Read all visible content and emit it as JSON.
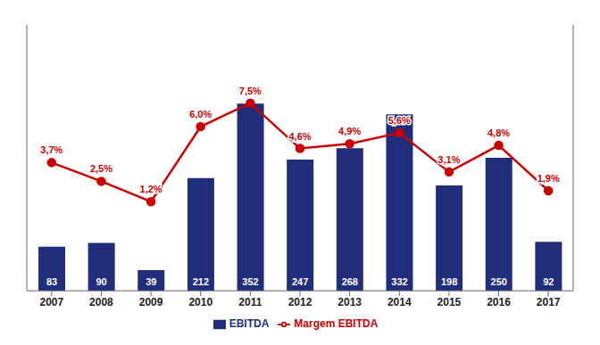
{
  "chart_data": {
    "type": "bar",
    "categories": [
      "2007",
      "2008",
      "2009",
      "2010",
      "2011",
      "2012",
      "2013",
      "2014",
      "2015",
      "2016",
      "2017"
    ],
    "ylim": [
      0,
      500
    ],
    "y2lim": [
      -4.5,
      12.5
    ],
    "tick_labels": "x",
    "grid": false,
    "legend": "bottom",
    "series": [
      {
        "name": "EBITDA",
        "type": "bar",
        "color": "#1f2d7b",
        "data_labels": true,
        "values": [
          83,
          90,
          39,
          212,
          352,
          247,
          268,
          332,
          198,
          250,
          92
        ]
      },
      {
        "name": "Margem EBITDA",
        "type": "line",
        "axis": "y2",
        "color": "#cc0000",
        "marker": "circle",
        "line_style": "solid",
        "data_labels": true,
        "values": [
          3.7,
          2.5,
          1.2,
          6.0,
          7.5,
          4.6,
          4.9,
          5.6,
          3.1,
          4.8,
          1.9
        ],
        "value_labels": [
          "3,7%",
          "2,5%",
          "1,2%",
          "6,0%",
          "7,5%",
          "4,6%",
          "4,9%",
          "5,6%",
          "3,1%",
          "4,8%",
          "1,9%"
        ]
      }
    ]
  }
}
